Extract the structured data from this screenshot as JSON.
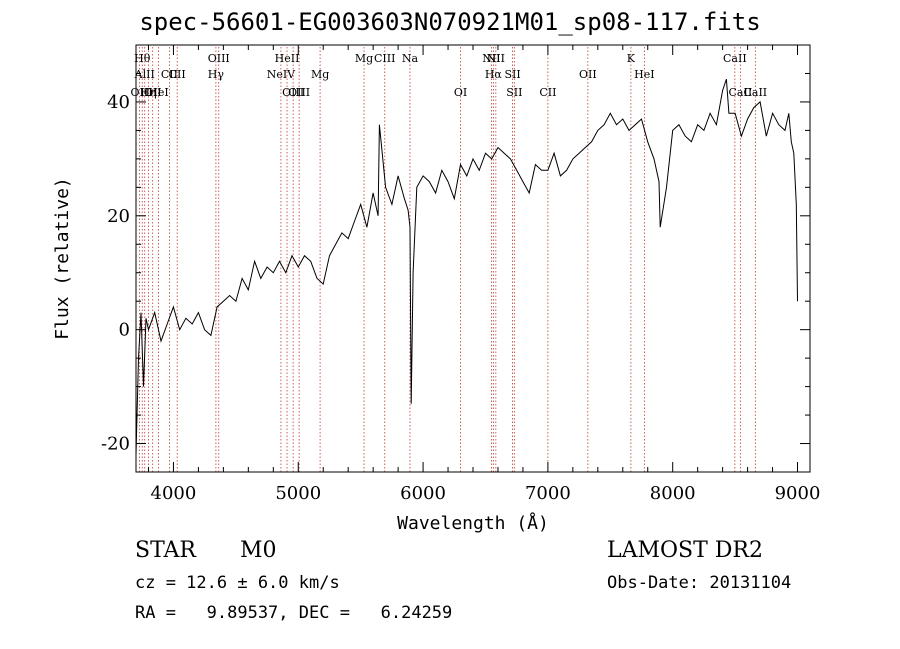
{
  "title": "spec-56601-EG003603N070921M01_sp08-117.fits",
  "info": {
    "class": "STAR",
    "subclass": "M0",
    "survey": "LAMOST DR2",
    "cz": "cz = 12.6 ± 6.0 km/s",
    "obs_date": "Obs-Date: 20131104",
    "radec": "RA =   9.89537, DEC =   6.24259"
  },
  "chart_data": {
    "type": "line",
    "xlabel": "Wavelength (Å)",
    "ylabel": "Flux (relative)",
    "xlim": [
      3700,
      9100
    ],
    "ylim": [
      -25,
      50
    ],
    "xticks": [
      4000,
      5000,
      6000,
      7000,
      8000,
      9000
    ],
    "yticks": [
      -20,
      0,
      20,
      40
    ],
    "series": [
      {
        "x": [
          3700,
          3720,
          3740,
          3760,
          3780,
          3800,
          3850,
          3900,
          3950,
          4000,
          4050,
          4100,
          4150,
          4200,
          4250,
          4300,
          4350,
          4400,
          4450,
          4500,
          4550,
          4600,
          4650,
          4700,
          4750,
          4800,
          4850,
          4900,
          4950,
          5000,
          5050,
          5100,
          5150,
          5200,
          5250,
          5300,
          5350,
          5400,
          5450,
          5500,
          5550,
          5600,
          5640,
          5650,
          5700,
          5750,
          5800,
          5850,
          5880,
          5895,
          5900,
          5905,
          5920,
          5950,
          6000,
          6050,
          6100,
          6150,
          6200,
          6250,
          6300,
          6350,
          6400,
          6450,
          6500,
          6550,
          6600,
          6650,
          6700,
          6750,
          6800,
          6850,
          6900,
          6950,
          7000,
          7050,
          7100,
          7150,
          7200,
          7250,
          7300,
          7350,
          7400,
          7450,
          7500,
          7550,
          7600,
          7650,
          7700,
          7750,
          7800,
          7850,
          7890,
          7900,
          7950,
          8000,
          8050,
          8100,
          8150,
          8200,
          8250,
          8300,
          8350,
          8400,
          8430,
          8450,
          8500,
          8550,
          8600,
          8650,
          8700,
          8750,
          8800,
          8850,
          8900,
          8930,
          8950,
          8970,
          8990,
          9000
        ],
        "y": [
          -22,
          -5,
          3,
          -10,
          2,
          0,
          3,
          -2,
          1,
          4,
          0,
          2,
          1,
          3,
          0,
          -1,
          4,
          5,
          6,
          5,
          9,
          7,
          12,
          9,
          11,
          10,
          12,
          10,
          13,
          11,
          13,
          12,
          9,
          8,
          13,
          15,
          17,
          16,
          19,
          22,
          18,
          24,
          20,
          36,
          25,
          22,
          27,
          23,
          21,
          18,
          2,
          -13,
          10,
          25,
          27,
          26,
          24,
          28,
          26,
          23,
          29,
          27,
          30,
          28,
          31,
          30,
          32,
          31,
          30,
          28,
          26,
          24,
          29,
          28,
          28,
          31,
          27,
          28,
          30,
          31,
          32,
          33,
          35,
          36,
          38,
          36,
          37,
          35,
          36,
          37,
          33,
          30,
          26,
          18,
          25,
          35,
          36,
          34,
          33,
          36,
          35,
          38,
          36,
          42,
          44,
          38,
          38,
          34,
          37,
          39,
          40,
          34,
          38,
          36,
          35,
          38,
          33,
          31,
          22,
          5
        ]
      }
    ],
    "lines": [
      {
        "w": 3727,
        "label": "OII",
        "row": 4
      },
      {
        "w": 3750,
        "label": "Hθ",
        "row": 1
      },
      {
        "w": 3770,
        "label": "AlII",
        "row": 2
      },
      {
        "w": 3800,
        "label": "Hη",
        "row": 3
      },
      {
        "w": 3834,
        "label": "OII",
        "row": 4
      },
      {
        "w": 3880,
        "label": "HeI",
        "row": 3
      },
      {
        "w": 3968,
        "label": "CII",
        "row": 2
      },
      {
        "w": 4030,
        "label": "CII",
        "row": 2
      },
      {
        "w": 4340,
        "label": "Hγ",
        "row": 2
      },
      {
        "w": 4363,
        "label": "OIII",
        "row": 1
      },
      {
        "w": 4861,
        "label": "NeIV",
        "row": 2
      },
      {
        "w": 4910,
        "label": "HeII",
        "row": 1
      },
      {
        "w": 4959,
        "label": "OIII",
        "row": 3
      },
      {
        "w": 5007,
        "label": "OIII",
        "row": 3
      },
      {
        "w": 5175,
        "label": "Mg",
        "row": 2
      },
      {
        "w": 5527,
        "label": "Mg",
        "row": 1
      },
      {
        "w": 5693,
        "label": "CIII",
        "row": 1
      },
      {
        "w": 5895,
        "label": "Na",
        "row": 1
      },
      {
        "w": 6300,
        "label": "OI",
        "row": 3
      },
      {
        "w": 6548,
        "label": "NII",
        "row": 1
      },
      {
        "w": 6563,
        "label": "Hα",
        "row": 2
      },
      {
        "w": 6583,
        "label": "NII",
        "row": 1
      },
      {
        "w": 6717,
        "label": "SII",
        "row": 2
      },
      {
        "w": 6731,
        "label": "SII",
        "row": 3
      },
      {
        "w": 7000,
        "label": "CII",
        "row": 3
      },
      {
        "w": 7320,
        "label": "OII",
        "row": 2
      },
      {
        "w": 7773,
        "label": "HeI",
        "row": 2
      },
      {
        "w": 7665,
        "label": "K",
        "row": 1
      },
      {
        "w": 8498,
        "label": "CaII",
        "row": 1
      },
      {
        "w": 8542,
        "label": "CaII",
        "row": 3
      },
      {
        "w": 8662,
        "label": "CaII",
        "row": 3
      }
    ]
  }
}
